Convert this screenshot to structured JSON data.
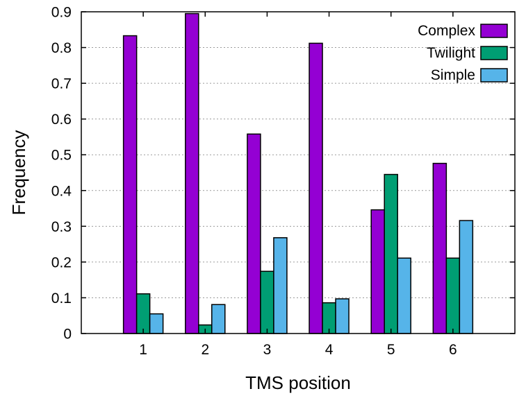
{
  "chart_data": {
    "type": "bar",
    "title": "",
    "xlabel": "TMS position",
    "ylabel": "Frequency",
    "categories": [
      "1",
      "2",
      "3",
      "4",
      "5",
      "6"
    ],
    "ylim": [
      0,
      0.9
    ],
    "yticks": [
      "0",
      "0.1",
      "0.2",
      "0.3",
      "0.4",
      "0.5",
      "0.6",
      "0.7",
      "0.8",
      "0.9"
    ],
    "grid": "horizontal dotted",
    "legend_position": "top-right",
    "series": [
      {
        "name": "Complex",
        "color": "#9400d3",
        "values": [
          0.833,
          0.895,
          0.558,
          0.812,
          0.346,
          0.476
        ]
      },
      {
        "name": "Twilight",
        "color": "#009e73",
        "values": [
          0.111,
          0.024,
          0.174,
          0.086,
          0.445,
          0.211
        ]
      },
      {
        "name": "Simple",
        "color": "#56b4e9",
        "values": [
          0.055,
          0.081,
          0.268,
          0.097,
          0.211,
          0.316
        ]
      }
    ]
  }
}
